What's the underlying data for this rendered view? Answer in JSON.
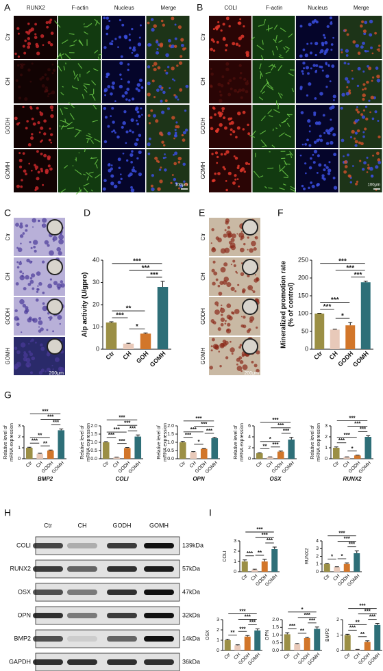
{
  "panels": {
    "labels": [
      "A",
      "B",
      "C",
      "D",
      "E",
      "F",
      "G",
      "H",
      "I"
    ]
  },
  "panel_a": {
    "channels": [
      "RUNX2",
      "F-actin",
      "Nucleus",
      "Merge"
    ],
    "rows": [
      "Ctr",
      "CH",
      "GODH",
      "GOMH"
    ],
    "scale_bar": "100μm"
  },
  "panel_b": {
    "channels": [
      "COLI",
      "F-actin",
      "Nucleus",
      "Merge"
    ],
    "rows": [
      "Ctr",
      "CH",
      "GODH",
      "GOMH"
    ],
    "scale_bar": "100μm"
  },
  "panel_c": {
    "rows": [
      "Ctr",
      "CH",
      "GODH",
      "GOMH"
    ],
    "scale_bar": "200μm"
  },
  "panel_e": {
    "rows": [
      "Ctr",
      "CH",
      "GODH",
      "GOMH"
    ],
    "scale_bar": "200μm"
  },
  "panel_h": {
    "columns": [
      "Ctr",
      "CH",
      "GODH",
      "GOMH"
    ],
    "bands": [
      {
        "protein": "COLI",
        "size": "139kDa"
      },
      {
        "protein": "RUNX2",
        "size": "57kDa"
      },
      {
        "protein": "OSX",
        "size": "47kDa"
      },
      {
        "protein": "OPN",
        "size": "32kDa"
      },
      {
        "protein": "BMP2",
        "size": "14kDa"
      },
      {
        "protein": "GAPDH",
        "size": "36kDa"
      }
    ]
  },
  "chart_data": [
    {
      "type": "bar",
      "ylabel": [
        "Alp activity (U/gpro)"
      ],
      "categories": [
        "Ctr",
        "CH",
        "GOH",
        "GOMH"
      ],
      "values": [
        12,
        2.5,
        7,
        28
      ],
      "errors": [
        0.3,
        0.2,
        0.3,
        2.5
      ],
      "colors": [
        "#9b8f45",
        "#e8c9b9",
        "#d2762a",
        "#2e6f78"
      ],
      "ylim": [
        0,
        40
      ],
      "yticks": [
        0,
        10,
        20,
        30,
        40
      ],
      "significance": [
        {
          "from": "Ctr",
          "to": "CH",
          "label": "***"
        },
        {
          "from": "CH",
          "to": "GOH",
          "label": "*"
        },
        {
          "from": "GOH",
          "to": "GOMH",
          "label": "***"
        },
        {
          "from": "Ctr",
          "to": "GOH",
          "label": "**"
        },
        {
          "from": "CH",
          "to": "GOMH",
          "label": "***"
        },
        {
          "from": "Ctr",
          "to": "GOMH",
          "label": "***"
        }
      ]
    },
    {
      "type": "bar",
      "ylabel": [
        "Mineralized promotion rate",
        "(% of control)"
      ],
      "categories": [
        "Ctr",
        "CH",
        "GODH",
        "GOMH"
      ],
      "values": [
        100,
        55,
        67,
        188
      ],
      "errors": [
        1,
        1,
        8,
        3
      ],
      "colors": [
        "#9b8f45",
        "#e8c9b9",
        "#d2762a",
        "#2e6f78"
      ],
      "ylim": [
        0,
        250
      ],
      "yticks": [
        0,
        50,
        100,
        150,
        200,
        250
      ],
      "significance": [
        {
          "from": "Ctr",
          "to": "CH",
          "label": "***"
        },
        {
          "from": "CH",
          "to": "GODH",
          "label": "*"
        },
        {
          "from": "GODH",
          "to": "GOMH",
          "label": "***"
        },
        {
          "from": "Ctr",
          "to": "GODH",
          "label": "***"
        },
        {
          "from": "CH",
          "to": "GOMH",
          "label": "***"
        },
        {
          "from": "Ctr",
          "to": "GOMH",
          "label": "***"
        }
      ]
    },
    {
      "type": "bar",
      "ylabel": [
        "Relative level of",
        "mRNA expression"
      ],
      "xlabel": "BMP2",
      "categories": [
        "Ctr",
        "CH",
        "GODH",
        "GOMH"
      ],
      "values": [
        1,
        0.45,
        0.75,
        2.6
      ],
      "errors": [
        0.05,
        0.05,
        0.05,
        0.12
      ],
      "colors": [
        "#9b8f45",
        "#e8c9b9",
        "#d2762a",
        "#2e6f78"
      ],
      "ylim": [
        0,
        3
      ],
      "yticks": [
        0,
        1,
        2,
        3
      ],
      "significance": [
        {
          "from": "Ctr",
          "to": "CH",
          "label": "***"
        },
        {
          "from": "CH",
          "to": "GODH",
          "label": "**"
        },
        {
          "from": "GODH",
          "to": "GOMH",
          "label": "***"
        },
        {
          "from": "Ctr",
          "to": "GODH",
          "label": "**"
        },
        {
          "from": "CH",
          "to": "GOMH",
          "label": "***"
        },
        {
          "from": "Ctr",
          "to": "GOMH",
          "label": "***"
        }
      ]
    },
    {
      "type": "bar",
      "ylabel": [
        "Relative level of",
        "mRNA expression"
      ],
      "xlabel": "COLI",
      "categories": [
        "Ctr",
        "CH",
        "GODH",
        "GOMH"
      ],
      "values": [
        1,
        0.08,
        0.65,
        1.35
      ],
      "errors": [
        0.04,
        0.02,
        0.03,
        0.1
      ],
      "colors": [
        "#9b8f45",
        "#e8c9b9",
        "#d2762a",
        "#2e6f78"
      ],
      "ylim": [
        0,
        2
      ],
      "yticks": [
        {
          "value": 0,
          "label": "0.0"
        },
        0.5,
        {
          "value": 1,
          "label": "1.0"
        },
        1.5,
        {
          "value": 2,
          "label": "2.0"
        }
      ],
      "significance": [
        {
          "from": "Ctr",
          "to": "CH",
          "label": "***"
        },
        {
          "from": "CH",
          "to": "GODH",
          "label": "***"
        },
        {
          "from": "GODH",
          "to": "GOMH",
          "label": "***"
        },
        {
          "from": "Ctr",
          "to": "GODH",
          "label": "***"
        },
        {
          "from": "CH",
          "to": "GOMH",
          "label": "***"
        },
        {
          "from": "Ctr",
          "to": "GOMH",
          "label": "***"
        }
      ]
    },
    {
      "type": "bar",
      "ylabel": [
        "Relative level of",
        "mRNA expression"
      ],
      "xlabel": "OPN",
      "categories": [
        "Ctr",
        "CH",
        "GODH",
        "GOMH"
      ],
      "values": [
        1,
        0.4,
        0.6,
        1.25
      ],
      "errors": [
        0.05,
        0.03,
        0.03,
        0.05
      ],
      "colors": [
        "#9b8f45",
        "#e8c9b9",
        "#d2762a",
        "#2e6f78"
      ],
      "ylim": [
        0,
        2
      ],
      "yticks": [
        {
          "value": 0,
          "label": "0.0"
        },
        0.5,
        {
          "value": 1,
          "label": "1.0"
        },
        1.5,
        {
          "value": 2,
          "label": "2.0"
        }
      ],
      "significance": [
        {
          "from": "Ctr",
          "to": "CH",
          "label": "***"
        },
        {
          "from": "CH",
          "to": "GODH",
          "label": "*"
        },
        {
          "from": "GODH",
          "to": "GOMH",
          "label": "***"
        },
        {
          "from": "Ctr",
          "to": "GODH",
          "label": "***"
        },
        {
          "from": "CH",
          "to": "GOMH",
          "label": "***"
        },
        {
          "from": "Ctr",
          "to": "GOMH",
          "label": "***"
        }
      ]
    },
    {
      "type": "bar",
      "ylabel": [
        "Relative level of",
        "mRNA expression"
      ],
      "xlabel": "OSX",
      "categories": [
        "Ctr",
        "CH",
        "GODH",
        "GOMH"
      ],
      "values": [
        1,
        0.3,
        1.3,
        3.5
      ],
      "errors": [
        0.1,
        0.05,
        0.1,
        0.4
      ],
      "colors": [
        "#9b8f45",
        "#e8c9b9",
        "#d2762a",
        "#2e6f78"
      ],
      "ylim": [
        0,
        6
      ],
      "yticks": [
        0,
        2,
        4,
        6
      ],
      "significance": [
        {
          "from": "Ctr",
          "to": "CH",
          "label": "**"
        },
        {
          "from": "CH",
          "to": "GODH",
          "label": "***"
        },
        {
          "from": "GODH",
          "to": "GOMH",
          "label": "***"
        },
        {
          "from": "Ctr",
          "to": "GODH",
          "label": "*"
        },
        {
          "from": "CH",
          "to": "GOMH",
          "label": "***"
        },
        {
          "from": "Ctr",
          "to": "GOMH",
          "label": "***"
        }
      ]
    },
    {
      "type": "bar",
      "ylabel": [
        "Relative level of",
        "mRNA expression"
      ],
      "xlabel": "RUNX2",
      "categories": [
        "Ctr",
        "CH",
        "GODH",
        "GOMH"
      ],
      "values": [
        1,
        0.15,
        0.3,
        2.0
      ],
      "errors": [
        0.08,
        0.02,
        0.03,
        0.1
      ],
      "colors": [
        "#9b8f45",
        "#e8c9b9",
        "#d2762a",
        "#2e6f78"
      ],
      "ylim": [
        0,
        3
      ],
      "yticks": [
        0,
        1,
        2,
        3
      ],
      "significance": [
        {
          "from": "Ctr",
          "to": "CH",
          "label": "***"
        },
        {
          "from": "CH",
          "to": "GODH",
          "label": "*"
        },
        {
          "from": "GODH",
          "to": "GOMH",
          "label": "***"
        },
        {
          "from": "Ctr",
          "to": "GODH",
          "label": "***"
        },
        {
          "from": "CH",
          "to": "GOMH",
          "label": "***"
        },
        {
          "from": "Ctr",
          "to": "GOMH",
          "label": "***"
        }
      ]
    },
    {
      "type": "bar",
      "ylabel": [
        "COLI"
      ],
      "categories": [
        "Ctr",
        "CH",
        "GODH",
        "GOMH"
      ],
      "values": [
        1,
        0.2,
        1.0,
        2.2
      ],
      "errors": [
        0.15,
        0.05,
        0.2,
        0.2
      ],
      "colors": [
        "#9b8f45",
        "#e8c9b9",
        "#d2762a",
        "#2e6f78"
      ],
      "ylim": [
        0,
        3
      ],
      "yticks": [
        0,
        1,
        2,
        3
      ],
      "significance": [
        {
          "from": "Ctr",
          "to": "CH",
          "label": "***"
        },
        {
          "from": "CH",
          "to": "GODH",
          "label": "**"
        },
        {
          "from": "GODH",
          "to": "GOMH",
          "label": "***"
        },
        {
          "from": "CH",
          "to": "GOMH",
          "label": "***"
        },
        {
          "from": "Ctr",
          "to": "GOMH",
          "label": "***"
        }
      ]
    },
    {
      "type": "bar",
      "ylabel": [
        "RUNX2"
      ],
      "categories": [
        "Ctr",
        "CH",
        "GODH",
        "GOMH"
      ],
      "values": [
        1,
        0.6,
        1.0,
        2.4
      ],
      "errors": [
        0.1,
        0.05,
        0.15,
        0.3
      ],
      "colors": [
        "#9b8f45",
        "#e8c9b9",
        "#d2762a",
        "#2e6f78"
      ],
      "ylim": [
        0,
        4
      ],
      "yticks": [
        0,
        1,
        2,
        3,
        4
      ],
      "significance": [
        {
          "from": "Ctr",
          "to": "CH",
          "label": "*"
        },
        {
          "from": "CH",
          "to": "GODH",
          "label": "*"
        },
        {
          "from": "GODH",
          "to": "GOMH",
          "label": "***"
        },
        {
          "from": "CH",
          "to": "GOMH",
          "label": "***"
        },
        {
          "from": "Ctr",
          "to": "GOMH",
          "label": "***"
        }
      ]
    },
    {
      "type": "bar",
      "ylabel": [
        "OSX"
      ],
      "categories": [
        "Ctr",
        "CH",
        "GODH",
        "GOMH"
      ],
      "values": [
        1,
        0.5,
        1.35,
        1.95
      ],
      "errors": [
        0.1,
        0.05,
        0.1,
        0.15
      ],
      "colors": [
        "#9b8f45",
        "#e8c9b9",
        "#d2762a",
        "#2e6f78"
      ],
      "ylim": [
        0,
        3
      ],
      "yticks": [
        0,
        1,
        2,
        3
      ],
      "significance": [
        {
          "from": "Ctr",
          "to": "CH",
          "label": "**"
        },
        {
          "from": "CH",
          "to": "GODH",
          "label": "***"
        },
        {
          "from": "GODH",
          "to": "GOMH",
          "label": "***"
        },
        {
          "from": "CH",
          "to": "GOMH",
          "label": "***"
        },
        {
          "from": "Ctr",
          "to": "GOMH",
          "label": "***"
        }
      ]
    },
    {
      "type": "bar",
      "ylabel": [
        "OPN"
      ],
      "categories": [
        "Ctr",
        "CH",
        "GODH",
        "GOMH"
      ],
      "values": [
        1.05,
        0.4,
        0.8,
        1.4
      ],
      "errors": [
        0.1,
        0.05,
        0.05,
        0.12
      ],
      "colors": [
        "#9b8f45",
        "#e8c9b9",
        "#d2762a",
        "#2e6f78"
      ],
      "ylim": [
        0,
        2
      ],
      "yticks": [
        {
          "value": 0,
          "label": "0.0"
        },
        0.5,
        {
          "value": 1,
          "label": "1.0"
        },
        1.5,
        {
          "value": 2,
          "label": "2.0"
        }
      ],
      "significance": [
        {
          "from": "Ctr",
          "to": "CH",
          "label": "***"
        },
        {
          "from": "CH",
          "to": "GODH",
          "label": "**"
        },
        {
          "from": "GODH",
          "to": "GOMH",
          "label": "***"
        },
        {
          "from": "CH",
          "to": "GOMH",
          "label": "***"
        },
        {
          "from": "Ctr",
          "to": "GOMH",
          "label": "*"
        }
      ]
    },
    {
      "type": "bar",
      "ylabel": [
        "BMP2"
      ],
      "categories": [
        "Ctr",
        "CH",
        "GODH",
        "GOMH"
      ],
      "values": [
        1,
        0.05,
        0.55,
        1.65
      ],
      "errors": [
        0.05,
        0.02,
        0.08,
        0.1
      ],
      "colors": [
        "#9b8f45",
        "#e8c9b9",
        "#d2762a",
        "#2e6f78"
      ],
      "ylim": [
        0,
        2
      ],
      "yticks": [
        0,
        1,
        2
      ],
      "significance": [
        {
          "from": "Ctr",
          "to": "CH",
          "label": "***"
        },
        {
          "from": "CH",
          "to": "GODH",
          "label": "**"
        },
        {
          "from": "GODH",
          "to": "GOMH",
          "label": "***"
        },
        {
          "from": "Ctr",
          "to": "GODH",
          "label": "**"
        },
        {
          "from": "CH",
          "to": "GOMH",
          "label": "***"
        },
        {
          "from": "Ctr",
          "to": "GOMH",
          "label": "***"
        }
      ]
    }
  ]
}
